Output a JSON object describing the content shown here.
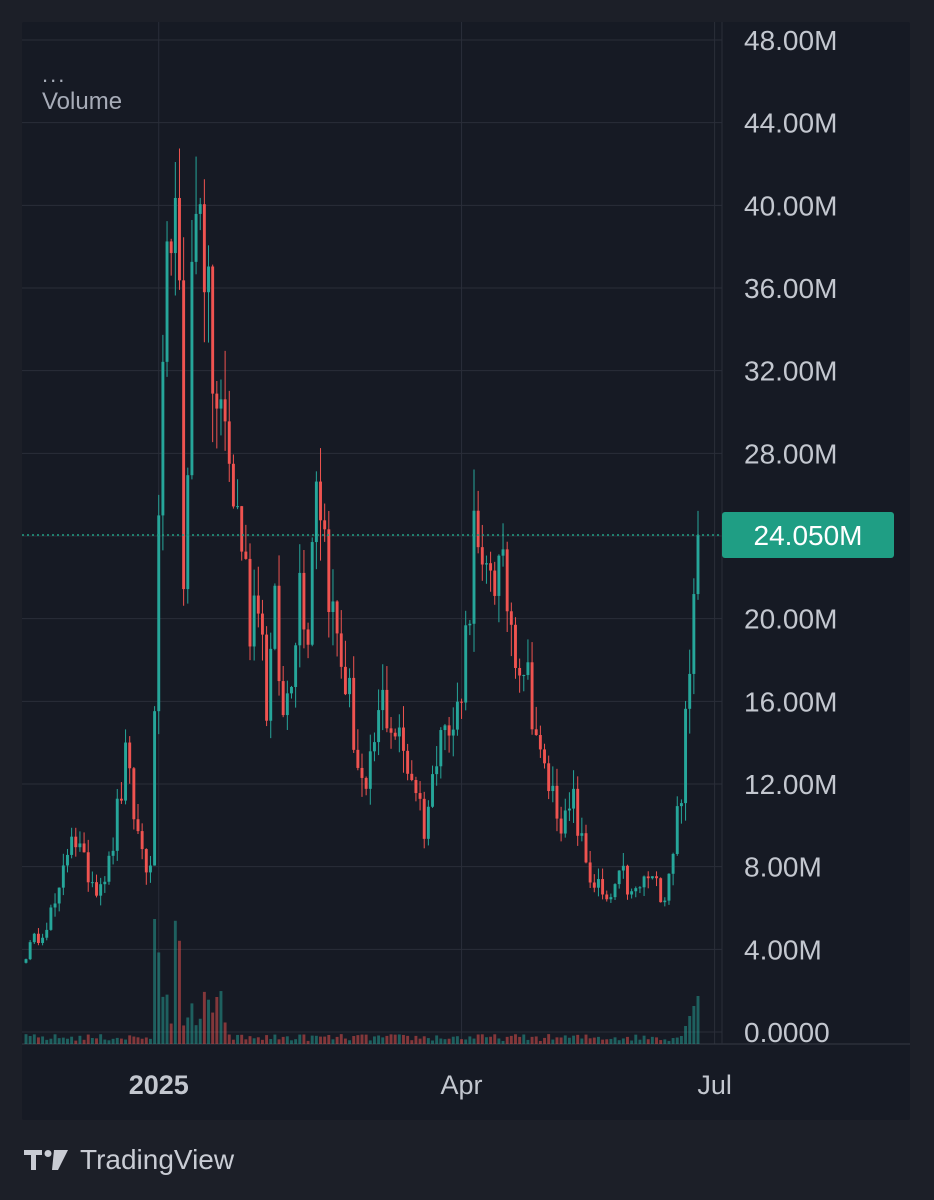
{
  "legend": {
    "dots": "...",
    "title": "Volume"
  },
  "branding": {
    "name": "TradingView",
    "icon": "tradingview-logo-icon"
  },
  "colors": {
    "background": "#161a24",
    "grid": "#2a2e39",
    "up": "#26a69a",
    "down": "#ef5350",
    "axis_text": "#c3c7cf",
    "price_badge": "#1f9e84"
  },
  "chart_data": {
    "type": "candlestick",
    "title": "",
    "series": [
      {
        "name": "Volume"
      }
    ],
    "y_axis": {
      "min": 0,
      "max": 48000000,
      "tick_values": [
        0,
        4000000,
        8000000,
        12000000,
        16000000,
        20000000,
        24000000,
        28000000,
        32000000,
        36000000,
        40000000,
        44000000,
        48000000
      ],
      "tick_labels": [
        "0.0000",
        "4.00M",
        "8.00M",
        "12.00M",
        "16.00M",
        "20.00M",
        "",
        "28.00M",
        "32.00M",
        "36.00M",
        "40.00M",
        "44.00M",
        "48.00M"
      ]
    },
    "x_axis": {
      "labels": [
        "2025",
        "Apr",
        "Jul"
      ],
      "label_index": [
        32,
        105,
        166
      ],
      "bold_label": "2025"
    },
    "last_value": 24050000,
    "last_value_label": "24.050M",
    "anchors": [
      [
        0,
        3.8
      ],
      [
        4,
        5.0
      ],
      [
        8,
        6.5
      ],
      [
        11,
        10.0
      ],
      [
        14,
        8.0
      ],
      [
        17,
        7.2
      ],
      [
        20,
        8.0
      ],
      [
        24,
        13.0
      ],
      [
        27,
        9.5
      ],
      [
        30,
        7.5
      ],
      [
        31,
        16.0
      ],
      [
        33,
        30.0
      ],
      [
        35,
        41.0
      ],
      [
        37,
        34.0
      ],
      [
        38,
        22.0
      ],
      [
        40,
        36.0
      ],
      [
        42,
        42.0
      ],
      [
        44,
        34.0
      ],
      [
        46,
        30.0
      ],
      [
        48,
        29.0
      ],
      [
        50,
        26.0
      ],
      [
        52,
        24.0
      ],
      [
        54,
        20.0
      ],
      [
        56,
        22.0
      ],
      [
        58,
        16.0
      ],
      [
        60,
        20.0
      ],
      [
        62,
        15.0
      ],
      [
        64,
        18.0
      ],
      [
        66,
        22.0
      ],
      [
        68,
        20.0
      ],
      [
        70,
        28.0
      ],
      [
        72,
        24.0
      ],
      [
        74,
        20.0
      ],
      [
        76,
        18.0
      ],
      [
        78,
        16.0
      ],
      [
        80,
        13.0
      ],
      [
        82,
        11.0
      ],
      [
        84,
        14.0
      ],
      [
        86,
        16.0
      ],
      [
        88,
        15.0
      ],
      [
        90,
        14.0
      ],
      [
        92,
        13.0
      ],
      [
        94,
        12.0
      ],
      [
        96,
        10.0
      ],
      [
        98,
        12.0
      ],
      [
        100,
        16.0
      ],
      [
        102,
        14.0
      ],
      [
        104,
        15.5
      ],
      [
        106,
        19.0
      ],
      [
        108,
        24.0
      ],
      [
        110,
        21.0
      ],
      [
        112,
        23.0
      ],
      [
        114,
        22.0
      ],
      [
        116,
        21.0
      ],
      [
        118,
        19.0
      ],
      [
        120,
        18.0
      ],
      [
        122,
        16.0
      ],
      [
        124,
        13.0
      ],
      [
        126,
        12.0
      ],
      [
        128,
        11.0
      ],
      [
        130,
        10.0
      ],
      [
        132,
        11.0
      ],
      [
        134,
        9.0
      ],
      [
        136,
        7.5
      ],
      [
        138,
        7.0
      ],
      [
        140,
        6.0
      ],
      [
        142,
        7.0
      ],
      [
        144,
        7.5
      ],
      [
        146,
        6.5
      ],
      [
        148,
        7.0
      ],
      [
        150,
        7.5
      ],
      [
        152,
        7.0
      ],
      [
        154,
        6.8
      ],
      [
        156,
        9.0
      ],
      [
        158,
        12.0
      ],
      [
        160,
        17.0
      ],
      [
        161,
        21.0
      ],
      [
        162,
        24.05
      ]
    ]
  }
}
